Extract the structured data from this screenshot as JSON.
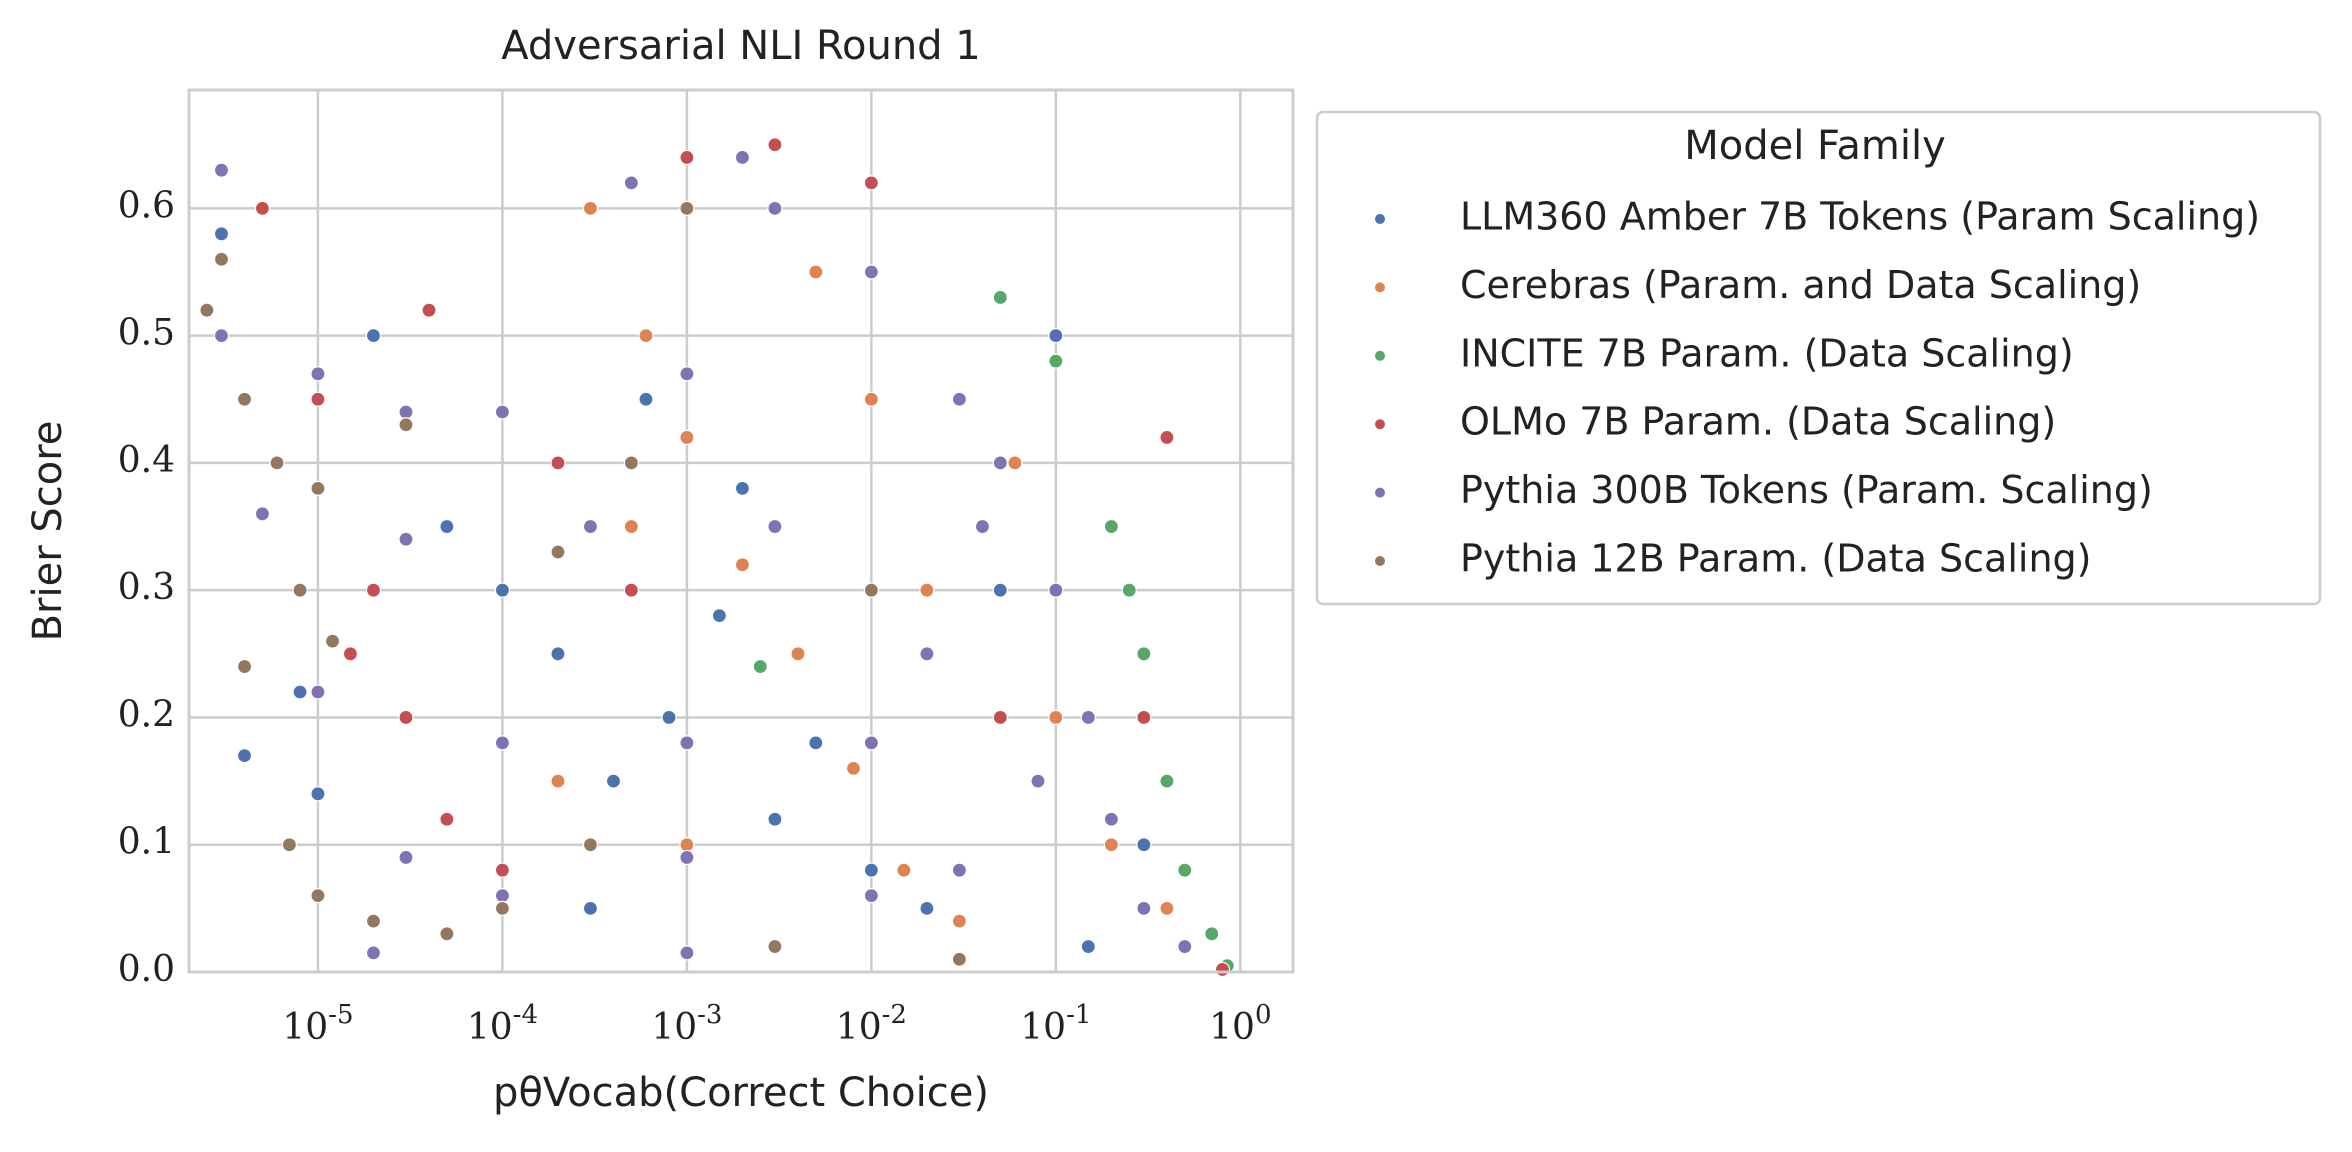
{
  "chart_data": {
    "type": "scatter",
    "title": "Adversarial NLI Round 1",
    "x_label": "pθVocab(Correct Choice)",
    "y_label": "Brier Score",
    "log_x": true,
    "grid": true,
    "legend_title": "Model Family",
    "legend_position": "outside-right",
    "xlim": [
      2e-06,
      1.93
    ],
    "ylim": [
      0,
      0.693
    ],
    "xticks": [
      {
        "value": 1e-05,
        "label": "10-5"
      },
      {
        "value": 0.0001,
        "label": "10-4"
      },
      {
        "value": 0.001,
        "label": "10-3"
      },
      {
        "value": 0.01,
        "label": "10-2"
      },
      {
        "value": 0.1,
        "label": "10-1"
      },
      {
        "value": 1,
        "label": "100"
      }
    ],
    "yticks": [
      {
        "value": 0,
        "label": "0.0"
      },
      0.1,
      0.2,
      0.3,
      0.4,
      0.5,
      0.6
    ],
    "series": [
      {
        "name": "LLM360 Amber 7B Tokens (Param Scaling)",
        "color": "#4c72b0",
        "x": [
          3e-06,
          8e-06,
          2e-05,
          5e-05,
          0.0001,
          0.0002,
          0.0004,
          0.0008,
          0.0015,
          0.003,
          0.005,
          0.01,
          0.02,
          0.05,
          0.1,
          0.15,
          0.3,
          0.0006,
          0.002,
          0.0003,
          1e-05,
          4e-06
        ],
        "values": [
          0.58,
          0.22,
          0.5,
          0.35,
          0.3,
          0.25,
          0.15,
          0.2,
          0.28,
          0.12,
          0.18,
          0.08,
          0.05,
          0.3,
          0.5,
          0.02,
          0.1,
          0.45,
          0.38,
          0.05,
          0.14,
          0.17
        ]
      },
      {
        "name": "Cerebras (Param. and Data Scaling)",
        "color": "#dd8452",
        "x": [
          0.0003,
          0.0006,
          0.001,
          0.002,
          0.004,
          0.008,
          0.015,
          0.03,
          0.005,
          0.02,
          0.06,
          0.1,
          0.2,
          0.4,
          0.001,
          0.0002,
          0.0005,
          0.01,
          0.003
        ],
        "values": [
          0.6,
          0.5,
          0.42,
          0.32,
          0.25,
          0.16,
          0.08,
          0.04,
          0.55,
          0.3,
          0.4,
          0.2,
          0.1,
          0.05,
          0.1,
          0.15,
          0.35,
          0.45,
          0.6
        ]
      },
      {
        "name": "INCITE 7B Param. (Data Scaling)",
        "color": "#55a868",
        "x": [
          0.05,
          0.1,
          0.2,
          0.3,
          0.4,
          0.5,
          0.7,
          0.85,
          0.0025,
          0.25
        ],
        "values": [
          0.53,
          0.48,
          0.35,
          0.25,
          0.15,
          0.08,
          0.03,
          0.005,
          0.24,
          0.3
        ]
      },
      {
        "name": "OLMo 7B Param. (Data Scaling)",
        "color": "#c44e52",
        "x": [
          5e-06,
          1e-05,
          2e-05,
          3e-05,
          5e-05,
          0.0001,
          0.0002,
          0.0005,
          0.001,
          0.003,
          0.01,
          0.02,
          0.05,
          0.1,
          0.3,
          0.4,
          0.8,
          4e-05,
          1.5e-05
        ],
        "values": [
          0.6,
          0.45,
          0.3,
          0.2,
          0.12,
          0.08,
          0.4,
          0.3,
          0.64,
          0.65,
          0.62,
          0.25,
          0.2,
          0.3,
          0.2,
          0.42,
          0.002,
          0.52,
          0.25
        ]
      },
      {
        "name": "Pythia 300B Tokens (Param. Scaling)",
        "color": "#8172b3",
        "x": [
          3e-06,
          1e-05,
          3e-05,
          0.0001,
          0.001,
          5e-06,
          3e-05,
          0.0003,
          0.003,
          1e-05,
          0.0001,
          0.001,
          0.01,
          3e-05,
          0.001,
          0.0001,
          0.01,
          2e-05,
          0.001,
          0.003,
          0.01,
          0.03,
          0.05,
          0.1,
          0.15,
          0.2,
          0.3,
          0.5,
          3e-06,
          0.0005,
          0.002,
          0.08,
          0.04,
          0.02,
          0.03
        ],
        "values": [
          0.5,
          0.47,
          0.44,
          0.44,
          0.47,
          0.36,
          0.34,
          0.35,
          0.35,
          0.22,
          0.18,
          0.18,
          0.18,
          0.09,
          0.09,
          0.06,
          0.06,
          0.015,
          0.015,
          0.6,
          0.55,
          0.45,
          0.4,
          0.3,
          0.2,
          0.12,
          0.05,
          0.02,
          0.63,
          0.62,
          0.64,
          0.15,
          0.35,
          0.25,
          0.08
        ]
      },
      {
        "name": "Pythia 12B Param. (Data Scaling)",
        "color": "#937860",
        "x": [
          2.5e-06,
          4e-06,
          6e-06,
          1e-05,
          8e-06,
          1.2e-05,
          3e-06,
          7e-06,
          1e-05,
          2e-05,
          5e-05,
          0.0001,
          0.0003,
          0.0005,
          0.0002,
          0.003,
          0.01,
          0.03,
          4e-06,
          3e-05,
          0.001
        ],
        "values": [
          0.52,
          0.45,
          0.4,
          0.38,
          0.3,
          0.26,
          0.56,
          0.1,
          0.06,
          0.04,
          0.03,
          0.05,
          0.1,
          0.4,
          0.33,
          0.02,
          0.3,
          0.01,
          0.24,
          0.43,
          0.6
        ]
      }
    ]
  }
}
